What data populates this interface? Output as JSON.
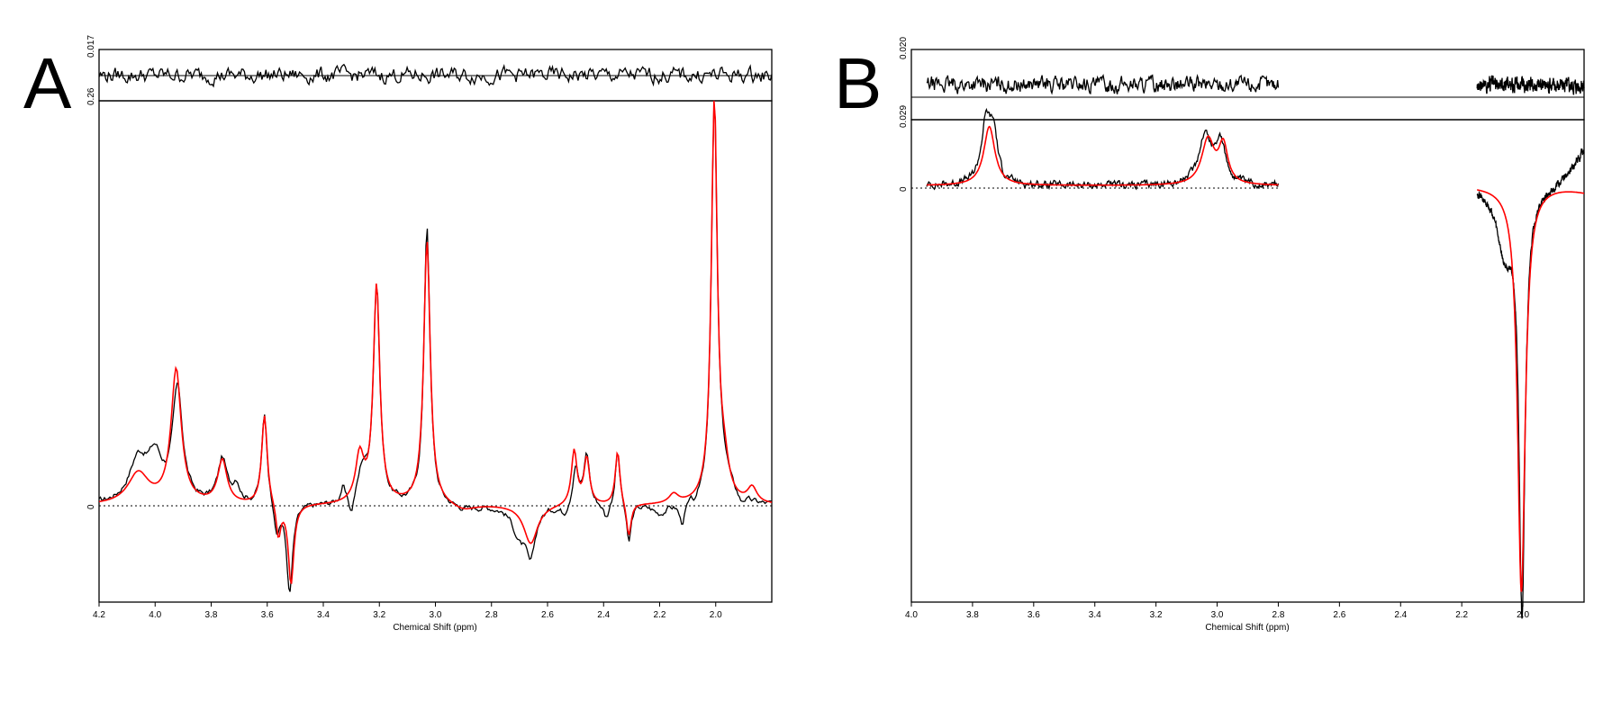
{
  "colors": {
    "measured": "#000000",
    "fit": "#ff0000",
    "background": "#ffffff"
  },
  "chart_data": [
    {
      "panel": "A",
      "type": "line",
      "title": "",
      "xlabel": "Chemical Shift (ppm)",
      "ylabel": "",
      "x_reversed": true,
      "xlim": [
        4.2,
        1.8
      ],
      "x_ticks": [
        "4.2",
        "4.0",
        "3.8",
        "3.6",
        "3.4",
        "3.2",
        "3.0",
        "2.8",
        "2.6",
        "2.4",
        "2.2",
        "2.0"
      ],
      "main_ylim": [
        -0.062,
        0.26
      ],
      "main_y_ticks": [
        "0",
        "0.26"
      ],
      "residual_ylim": [
        -0.017,
        0.017
      ],
      "residual_y_ticks": [
        "0.017"
      ],
      "grid": false,
      "legend": "none",
      "series": [
        {
          "role": "measured",
          "color": "#000000",
          "peaks": [
            {
              "x": 4.06,
              "y": 0.028,
              "w": 0.04
            },
            {
              "x": 4.0,
              "y": 0.026,
              "w": 0.03
            },
            {
              "x": 3.92,
              "y": 0.072,
              "w": 0.022
            },
            {
              "x": 3.76,
              "y": 0.028,
              "w": 0.02
            },
            {
              "x": 3.71,
              "y": 0.012,
              "w": 0.015
            },
            {
              "x": 3.61,
              "y": 0.058,
              "w": 0.012
            },
            {
              "x": 3.565,
              "y": -0.02,
              "w": 0.01
            },
            {
              "x": 3.52,
              "y": -0.058,
              "w": 0.013
            },
            {
              "x": 3.33,
              "y": 0.01,
              "w": 0.01
            },
            {
              "x": 3.3,
              "y": -0.012,
              "w": 0.01
            },
            {
              "x": 3.26,
              "y": 0.02,
              "w": 0.02
            },
            {
              "x": 3.21,
              "y": 0.14,
              "w": 0.014
            },
            {
              "x": 3.03,
              "y": 0.18,
              "w": 0.013
            },
            {
              "x": 2.9,
              "y": -0.003,
              "w": 0.05
            },
            {
              "x": 2.7,
              "y": -0.018,
              "w": 0.03
            },
            {
              "x": 2.66,
              "y": -0.03,
              "w": 0.02
            },
            {
              "x": 2.54,
              "y": -0.006,
              "w": 0.015
            },
            {
              "x": 2.5,
              "y": 0.026,
              "w": 0.012
            },
            {
              "x": 2.46,
              "y": 0.033,
              "w": 0.012
            },
            {
              "x": 2.39,
              "y": -0.01,
              "w": 0.012
            },
            {
              "x": 2.35,
              "y": 0.036,
              "w": 0.01
            },
            {
              "x": 2.31,
              "y": -0.026,
              "w": 0.01
            },
            {
              "x": 2.2,
              "y": -0.006,
              "w": 0.03
            },
            {
              "x": 2.12,
              "y": -0.014,
              "w": 0.012
            },
            {
              "x": 2.07,
              "y": -0.006,
              "w": 0.01
            },
            {
              "x": 2.005,
              "y": 0.255,
              "w": 0.013
            },
            {
              "x": 1.97,
              "y": 0.015,
              "w": 0.03
            },
            {
              "x": 1.91,
              "y": -0.004,
              "w": 0.01
            }
          ],
          "noise": 0.003
        },
        {
          "role": "fit",
          "color": "#ff0000",
          "peaks": [
            {
              "x": 4.06,
              "y": 0.02,
              "w": 0.045
            },
            {
              "x": 3.925,
              "y": 0.086,
              "w": 0.022
            },
            {
              "x": 3.76,
              "y": 0.028,
              "w": 0.02
            },
            {
              "x": 3.61,
              "y": 0.058,
              "w": 0.012
            },
            {
              "x": 3.56,
              "y": -0.022,
              "w": 0.01
            },
            {
              "x": 3.515,
              "y": -0.052,
              "w": 0.012
            },
            {
              "x": 3.27,
              "y": 0.03,
              "w": 0.018
            },
            {
              "x": 3.21,
              "y": 0.14,
              "w": 0.014
            },
            {
              "x": 3.03,
              "y": 0.17,
              "w": 0.014
            },
            {
              "x": 2.9,
              "y": -0.004,
              "w": 0.05
            },
            {
              "x": 2.66,
              "y": -0.025,
              "w": 0.03
            },
            {
              "x": 2.505,
              "y": 0.035,
              "w": 0.012
            },
            {
              "x": 2.46,
              "y": 0.03,
              "w": 0.012
            },
            {
              "x": 2.35,
              "y": 0.035,
              "w": 0.01
            },
            {
              "x": 2.31,
              "y": -0.022,
              "w": 0.01
            },
            {
              "x": 2.15,
              "y": 0.006,
              "w": 0.02
            },
            {
              "x": 2.005,
              "y": 0.258,
              "w": 0.013
            },
            {
              "x": 1.97,
              "y": 0.02,
              "w": 0.02
            },
            {
              "x": 1.87,
              "y": 0.01,
              "w": 0.02
            }
          ],
          "noise": 0
        },
        {
          "role": "residual",
          "color": "#000000",
          "peaks": [],
          "noise": 0.006
        }
      ]
    },
    {
      "panel": "B",
      "type": "line",
      "title": "",
      "xlabel": "Chemical Shift (ppm)",
      "ylabel": "",
      "x_reversed": true,
      "xlim": [
        4.0,
        1.8
      ],
      "x_ticks": [
        "4.0",
        "3.8",
        "3.6",
        "3.4",
        "3.2",
        "3.0",
        "2.8",
        "2.6",
        "2.4",
        "2.2",
        "2.0"
      ],
      "main_ylim": [
        -0.06,
        0.0095
      ],
      "main_y_ticks": [
        "0",
        "0.029"
      ],
      "residual_ylim": [
        -0.02,
        0.02
      ],
      "residual_y_ticks": [
        "0.020"
      ],
      "grid": false,
      "legend": "none",
      "segments": [
        [
          3.95,
          2.8
        ],
        [
          2.15,
          1.8
        ]
      ],
      "series": [
        {
          "role": "measured",
          "color": "#000000",
          "peaks": [
            {
              "x": 3.755,
              "y": 0.009,
              "w": 0.02
            },
            {
              "x": 3.73,
              "y": 0.006,
              "w": 0.015
            },
            {
              "x": 3.04,
              "y": 0.007,
              "w": 0.025
            },
            {
              "x": 2.99,
              "y": 0.006,
              "w": 0.02
            },
            {
              "x": 2.003,
              "y": -0.06,
              "w": 0.012
            },
            {
              "x": 2.06,
              "y": -0.009,
              "w": 0.03
            }
          ],
          "tail_end": 0.0055,
          "noise": 0.0008
        },
        {
          "role": "fit",
          "color": "#ff0000",
          "peaks": [
            {
              "x": 3.745,
              "y": 0.0085,
              "w": 0.022
            },
            {
              "x": 3.03,
              "y": 0.0065,
              "w": 0.025
            },
            {
              "x": 2.98,
              "y": 0.0055,
              "w": 0.018
            },
            {
              "x": 2.005,
              "y": -0.0585,
              "w": 0.015
            }
          ],
          "tail_end": -0.0008,
          "noise": 0
        },
        {
          "role": "residual",
          "color": "#000000",
          "peaks": [],
          "noise": 0.005
        }
      ]
    }
  ]
}
